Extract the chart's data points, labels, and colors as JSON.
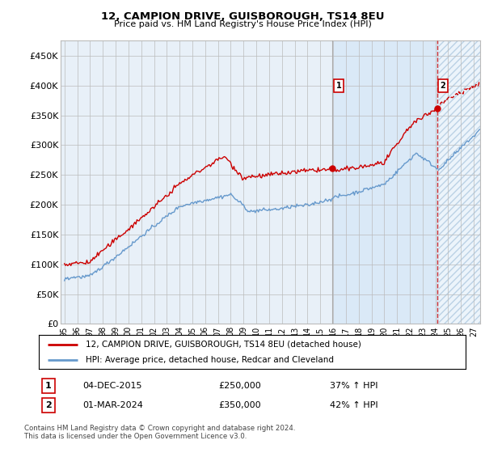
{
  "title": "12, CAMPION DRIVE, GUISBOROUGH, TS14 8EU",
  "subtitle": "Price paid vs. HM Land Registry's House Price Index (HPI)",
  "ylim": [
    0,
    475000
  ],
  "yticks": [
    0,
    50000,
    100000,
    150000,
    200000,
    250000,
    300000,
    350000,
    400000,
    450000
  ],
  "ytick_labels": [
    "£0",
    "£50K",
    "£100K",
    "£150K",
    "£200K",
    "£250K",
    "£300K",
    "£350K",
    "£400K",
    "£450K"
  ],
  "hpi_color": "#6699cc",
  "price_color": "#cc0000",
  "sale1_date_x": 2015.92,
  "sale1_price": 250000,
  "sale2_date_x": 2024.17,
  "sale2_price": 350000,
  "legend_price_label": "12, CAMPION DRIVE, GUISBOROUGH, TS14 8EU (detached house)",
  "legend_hpi_label": "HPI: Average price, detached house, Redcar and Cleveland",
  "table_row1": [
    "1",
    "04-DEC-2015",
    "£250,000",
    "37% ↑ HPI"
  ],
  "table_row2": [
    "2",
    "01-MAR-2024",
    "£350,000",
    "42% ↑ HPI"
  ],
  "footer": "Contains HM Land Registry data © Crown copyright and database right 2024.\nThis data is licensed under the Open Government Licence v3.0.",
  "background_color": "#ffffff",
  "plot_bg_color": "#e8f0f8",
  "hatch_color": "#b0c8e0",
  "grid_color": "#bbbbbb",
  "xlim_start": 1994.7,
  "xlim_end": 2027.5,
  "future_start": 2024.25,
  "highlight_start": 2015.92
}
